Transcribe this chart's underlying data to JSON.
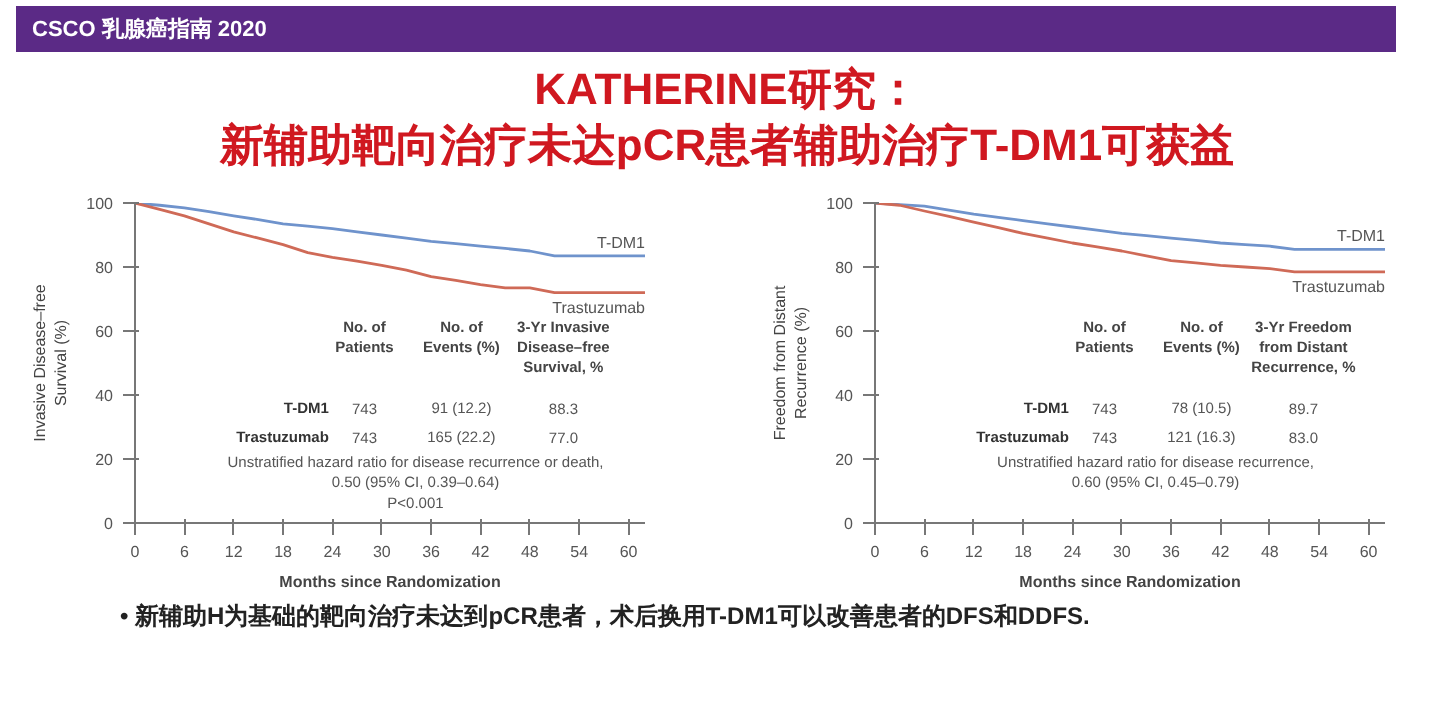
{
  "chart_data": [
    {
      "type": "line",
      "title": "KATHERINE研究：",
      "subtitle": "新辅助靶向治疗未达pCR患者辅助治疗T-DM1可获益",
      "xlabel": "Months since Randomization",
      "ylabel": "Invasive Disease–free\nSurvival (%)",
      "xlim": [
        0,
        62
      ],
      "ylim": [
        0,
        100
      ],
      "xticks": [
        0,
        6,
        12,
        18,
        24,
        30,
        36,
        42,
        48,
        54,
        60
      ],
      "yticks": [
        0,
        20,
        40,
        60,
        80,
        100
      ],
      "grid": false,
      "marker": "none",
      "line_style": "solid",
      "annotations": [
        "CSCO 乳腺癌指南 2020",
        "No. of\nPatients",
        "No. of\nEvents (%)",
        "3-Yr Invasive\nDisease–free\nSurvival, %",
        "T-DM1",
        "743",
        "91 (12.2)",
        "88.3",
        "Trastuzumab",
        "743",
        "165 (22.2)",
        "77.0",
        "Unstratified hazard ratio for disease recurrence or death,\n0.50 (95% CI, 0.39–0.64)\nP<0.001"
      ],
      "x": [
        0,
        3,
        6,
        9,
        12,
        15,
        18,
        21,
        24,
        27,
        30,
        33,
        36,
        39,
        42,
        45,
        48,
        51,
        54,
        58,
        62
      ],
      "series": [
        {
          "name": "T-DM1",
          "color": "#6f93cc",
          "values": [
            100,
            99.3,
            98.5,
            97.3,
            96,
            94.8,
            93.5,
            92.8,
            92,
            91,
            90,
            89,
            88,
            87.3,
            86.5,
            85.8,
            85,
            83.5,
            83.5,
            83.5,
            83.5
          ]
        },
        {
          "name": "Trastuzumab",
          "color": "#cf6a57",
          "values": [
            100,
            98,
            96,
            93.5,
            91,
            89,
            87,
            84.5,
            83,
            81.8,
            80.5,
            79,
            77,
            75.8,
            74.5,
            73.5,
            73.5,
            72,
            72,
            72,
            72
          ]
        }
      ]
    },
    {
      "type": "line",
      "xlabel": "Months since Randomization",
      "ylabel": "Freedom from Distant\nRecurrence (%)",
      "xlim": [
        0,
        62
      ],
      "ylim": [
        0,
        100
      ],
      "xticks": [
        0,
        6,
        12,
        18,
        24,
        30,
        36,
        42,
        48,
        54,
        60
      ],
      "yticks": [
        0,
        20,
        40,
        60,
        80,
        100
      ],
      "grid": false,
      "marker": "none",
      "line_style": "solid",
      "annotations": [
        "• 新辅助H为基础的靶向治疗未达到pCR患者，术后换用T-DM1可以改善患者的DFS和DDFS.",
        "No. of\nPatients",
        "No. of\nEvents (%)",
        "3-Yr Freedom\nfrom Distant\nRecurrence, %",
        "T-DM1",
        "743",
        "78 (10.5)",
        "89.7",
        "Trastuzumab",
        "743",
        "121 (16.3)",
        "83.0",
        "Unstratified hazard ratio for disease recurrence,\n0.60 (95% CI, 0.45–0.79)"
      ],
      "x": [
        0,
        3,
        6,
        9,
        12,
        15,
        18,
        21,
        24,
        27,
        30,
        33,
        36,
        39,
        42,
        45,
        48,
        51,
        54,
        58,
        62
      ],
      "series": [
        {
          "name": "T-DM1",
          "color": "#6f93cc",
          "values": [
            100,
            99.5,
            99,
            97.8,
            96.5,
            95.5,
            94.5,
            93.5,
            92.5,
            91.5,
            90.5,
            89.8,
            89,
            88.3,
            87.5,
            87,
            86.5,
            85.5,
            85.5,
            85.5,
            85.5
          ]
        },
        {
          "name": "Trastuzumab",
          "color": "#cf6a57",
          "values": [
            100,
            99.3,
            97.5,
            95.8,
            94,
            92.3,
            90.5,
            89,
            87.5,
            86.3,
            85,
            83.5,
            82,
            81.3,
            80.5,
            80,
            79.5,
            78.5,
            78.5,
            78.5,
            78.5
          ]
        }
      ]
    }
  ]
}
